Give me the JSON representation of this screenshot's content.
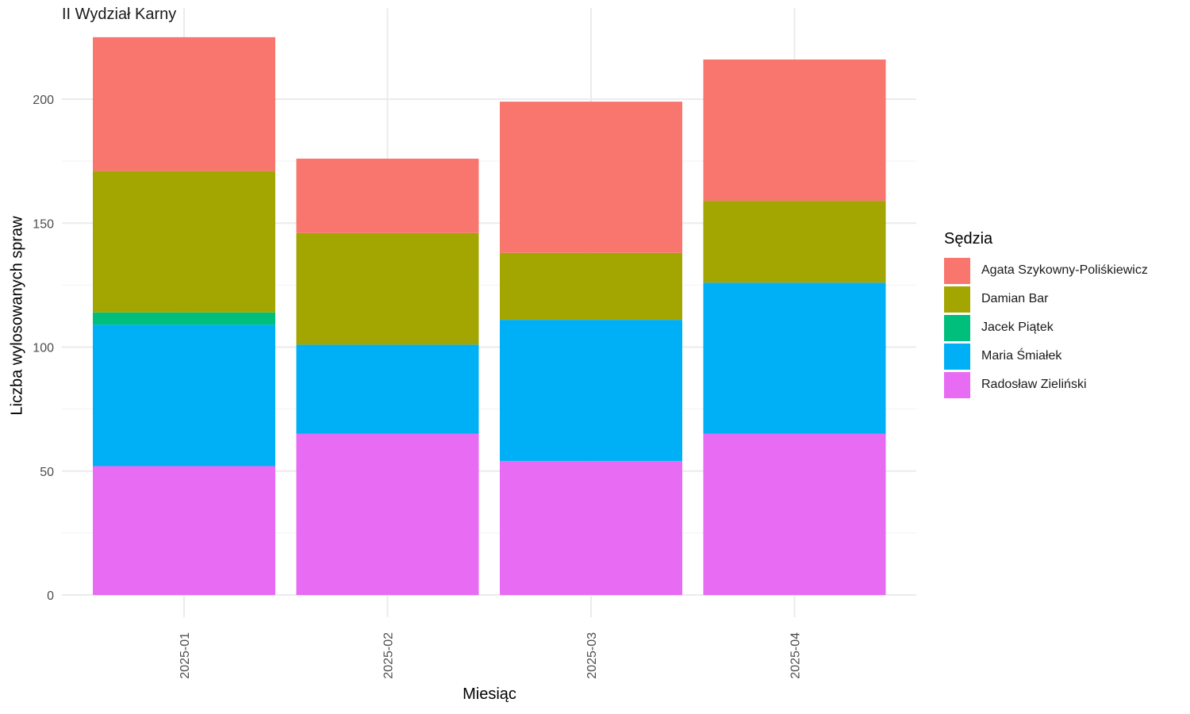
{
  "chart_data": {
    "type": "bar",
    "stacked": true,
    "facet_title": "II Wydział Karny",
    "xlabel": "Miesiąc",
    "ylabel": "Liczba wylosowanych spraw",
    "categories": [
      "2025-01",
      "2025-02",
      "2025-03",
      "2025-04"
    ],
    "ylim": [
      0,
      225
    ],
    "yticks": [
      0,
      50,
      100,
      150,
      200
    ],
    "grid": true,
    "legend": {
      "title": "Sędzia",
      "position": "right"
    },
    "series": [
      {
        "name": "Radosław Zieliński",
        "color": "#E76BF3",
        "values": [
          52,
          65,
          54,
          65
        ]
      },
      {
        "name": "Maria Śmiałek",
        "color": "#00B0F6",
        "values": [
          57,
          36,
          57,
          61
        ]
      },
      {
        "name": "Jacek Piątek",
        "color": "#00BF7D",
        "values": [
          5,
          0,
          0,
          0
        ]
      },
      {
        "name": "Damian Bar",
        "color": "#A3A500",
        "values": [
          57,
          45,
          27,
          33
        ]
      },
      {
        "name": "Agata Szykowny-Poliśkiewicz",
        "color": "#F8766D",
        "values": [
          54,
          30,
          61,
          57
        ]
      }
    ],
    "legend_order": [
      "Agata Szykowny-Poliśkiewicz",
      "Damian Bar",
      "Jacek Piątek",
      "Maria Śmiałek",
      "Radosław Zieliński"
    ]
  }
}
